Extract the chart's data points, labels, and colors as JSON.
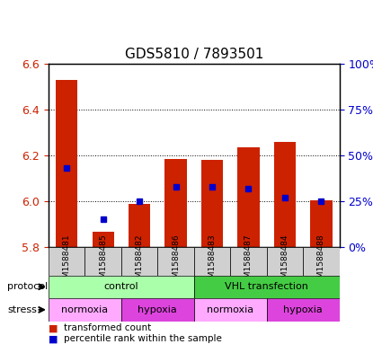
{
  "title": "GDS5810 / 7893501",
  "samples": [
    "GSM1588481",
    "GSM1588485",
    "GSM1588482",
    "GSM1588486",
    "GSM1588483",
    "GSM1588487",
    "GSM1588484",
    "GSM1588488"
  ],
  "bar_bottoms": [
    5.8,
    5.8,
    5.8,
    5.8,
    5.8,
    5.8,
    5.8,
    5.8
  ],
  "bar_tops": [
    6.53,
    5.865,
    5.99,
    6.185,
    6.18,
    6.235,
    6.26,
    6.005
  ],
  "percentile_values": [
    43,
    15,
    25,
    33,
    33,
    32,
    27,
    25
  ],
  "ylim": [
    5.8,
    6.6
  ],
  "yticks_left": [
    5.8,
    6.0,
    6.2,
    6.4,
    6.6
  ],
  "yticks_right": [
    0,
    25,
    50,
    75,
    100
  ],
  "bar_color": "#cc2200",
  "dot_color": "#0000cc",
  "bg_color": "#f0f0f0",
  "plot_bg": "#ffffff",
  "protocol_groups": [
    {
      "label": "control",
      "start": 0,
      "end": 3,
      "color": "#aaffaa"
    },
    {
      "label": "VHL transfection",
      "start": 4,
      "end": 7,
      "color": "#44cc44"
    }
  ],
  "stress_groups": [
    {
      "label": "normoxia",
      "start": 0,
      "end": 1,
      "color": "#ffaaff"
    },
    {
      "label": "hypoxia",
      "start": 2,
      "end": 3,
      "color": "#dd44dd"
    },
    {
      "label": "normoxia",
      "start": 4,
      "end": 5,
      "color": "#ffaaff"
    },
    {
      "label": "hypoxia",
      "start": 6,
      "end": 7,
      "color": "#dd44dd"
    }
  ],
  "legend_items": [
    {
      "label": "transformed count",
      "color": "#cc2200"
    },
    {
      "label": "percentile rank within the sample",
      "color": "#0000cc"
    }
  ]
}
